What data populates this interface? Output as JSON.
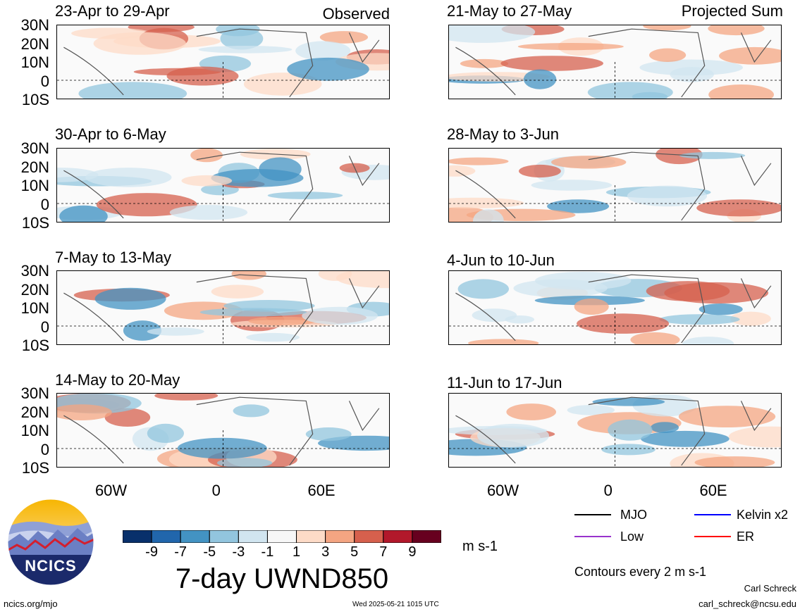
{
  "panels": [
    {
      "title": "23-Apr to 29-Apr",
      "tag": "Observed"
    },
    {
      "title": "30-Apr to 6-May",
      "tag": ""
    },
    {
      "title": "7-May to 13-May",
      "tag": ""
    },
    {
      "title": "14-May to 20-May",
      "tag": ""
    },
    {
      "title": "21-May to 27-May",
      "tag": "Projected Sum"
    },
    {
      "title": "28-May to 3-Jun",
      "tag": ""
    },
    {
      "title": "4-Jun to 10-Jun",
      "tag": ""
    },
    {
      "title": "11-Jun to 17-Jun",
      "tag": ""
    }
  ],
  "lat_labels": [
    "30N",
    "20N",
    "10N",
    "0",
    "10S"
  ],
  "lon_labels": [
    "60W",
    "0",
    "60E"
  ],
  "colorbar": {
    "labels": [
      "-9",
      "-7",
      "-5",
      "-3",
      "-1",
      "1",
      "3",
      "5",
      "7",
      "9"
    ],
    "colors": [
      "#08306b",
      "#2166ac",
      "#4393c3",
      "#92c5de",
      "#d1e5f0",
      "#f7f7f7",
      "#fddbc7",
      "#f4a582",
      "#d6604d",
      "#b2182b",
      "#67001f"
    ],
    "units": "m s-1"
  },
  "title": "7-day UWND850",
  "legend": {
    "items": [
      {
        "label": "MJO",
        "color": "#000000"
      },
      {
        "label": "Kelvin x2",
        "color": "#0000ff"
      },
      {
        "label": "Low",
        "color": "#9933cc"
      },
      {
        "label": "ER",
        "color": "#ff0000"
      }
    ],
    "contours": "Contours every 2 m s-1"
  },
  "logo": {
    "text": "NCICS"
  },
  "footer": {
    "url": "ncics.org/mjo",
    "timestamp": "Wed 2025-05-21 1015 UTC",
    "author": "Carl Schreck",
    "email": "carl_schreck@ncsu.edu"
  }
}
